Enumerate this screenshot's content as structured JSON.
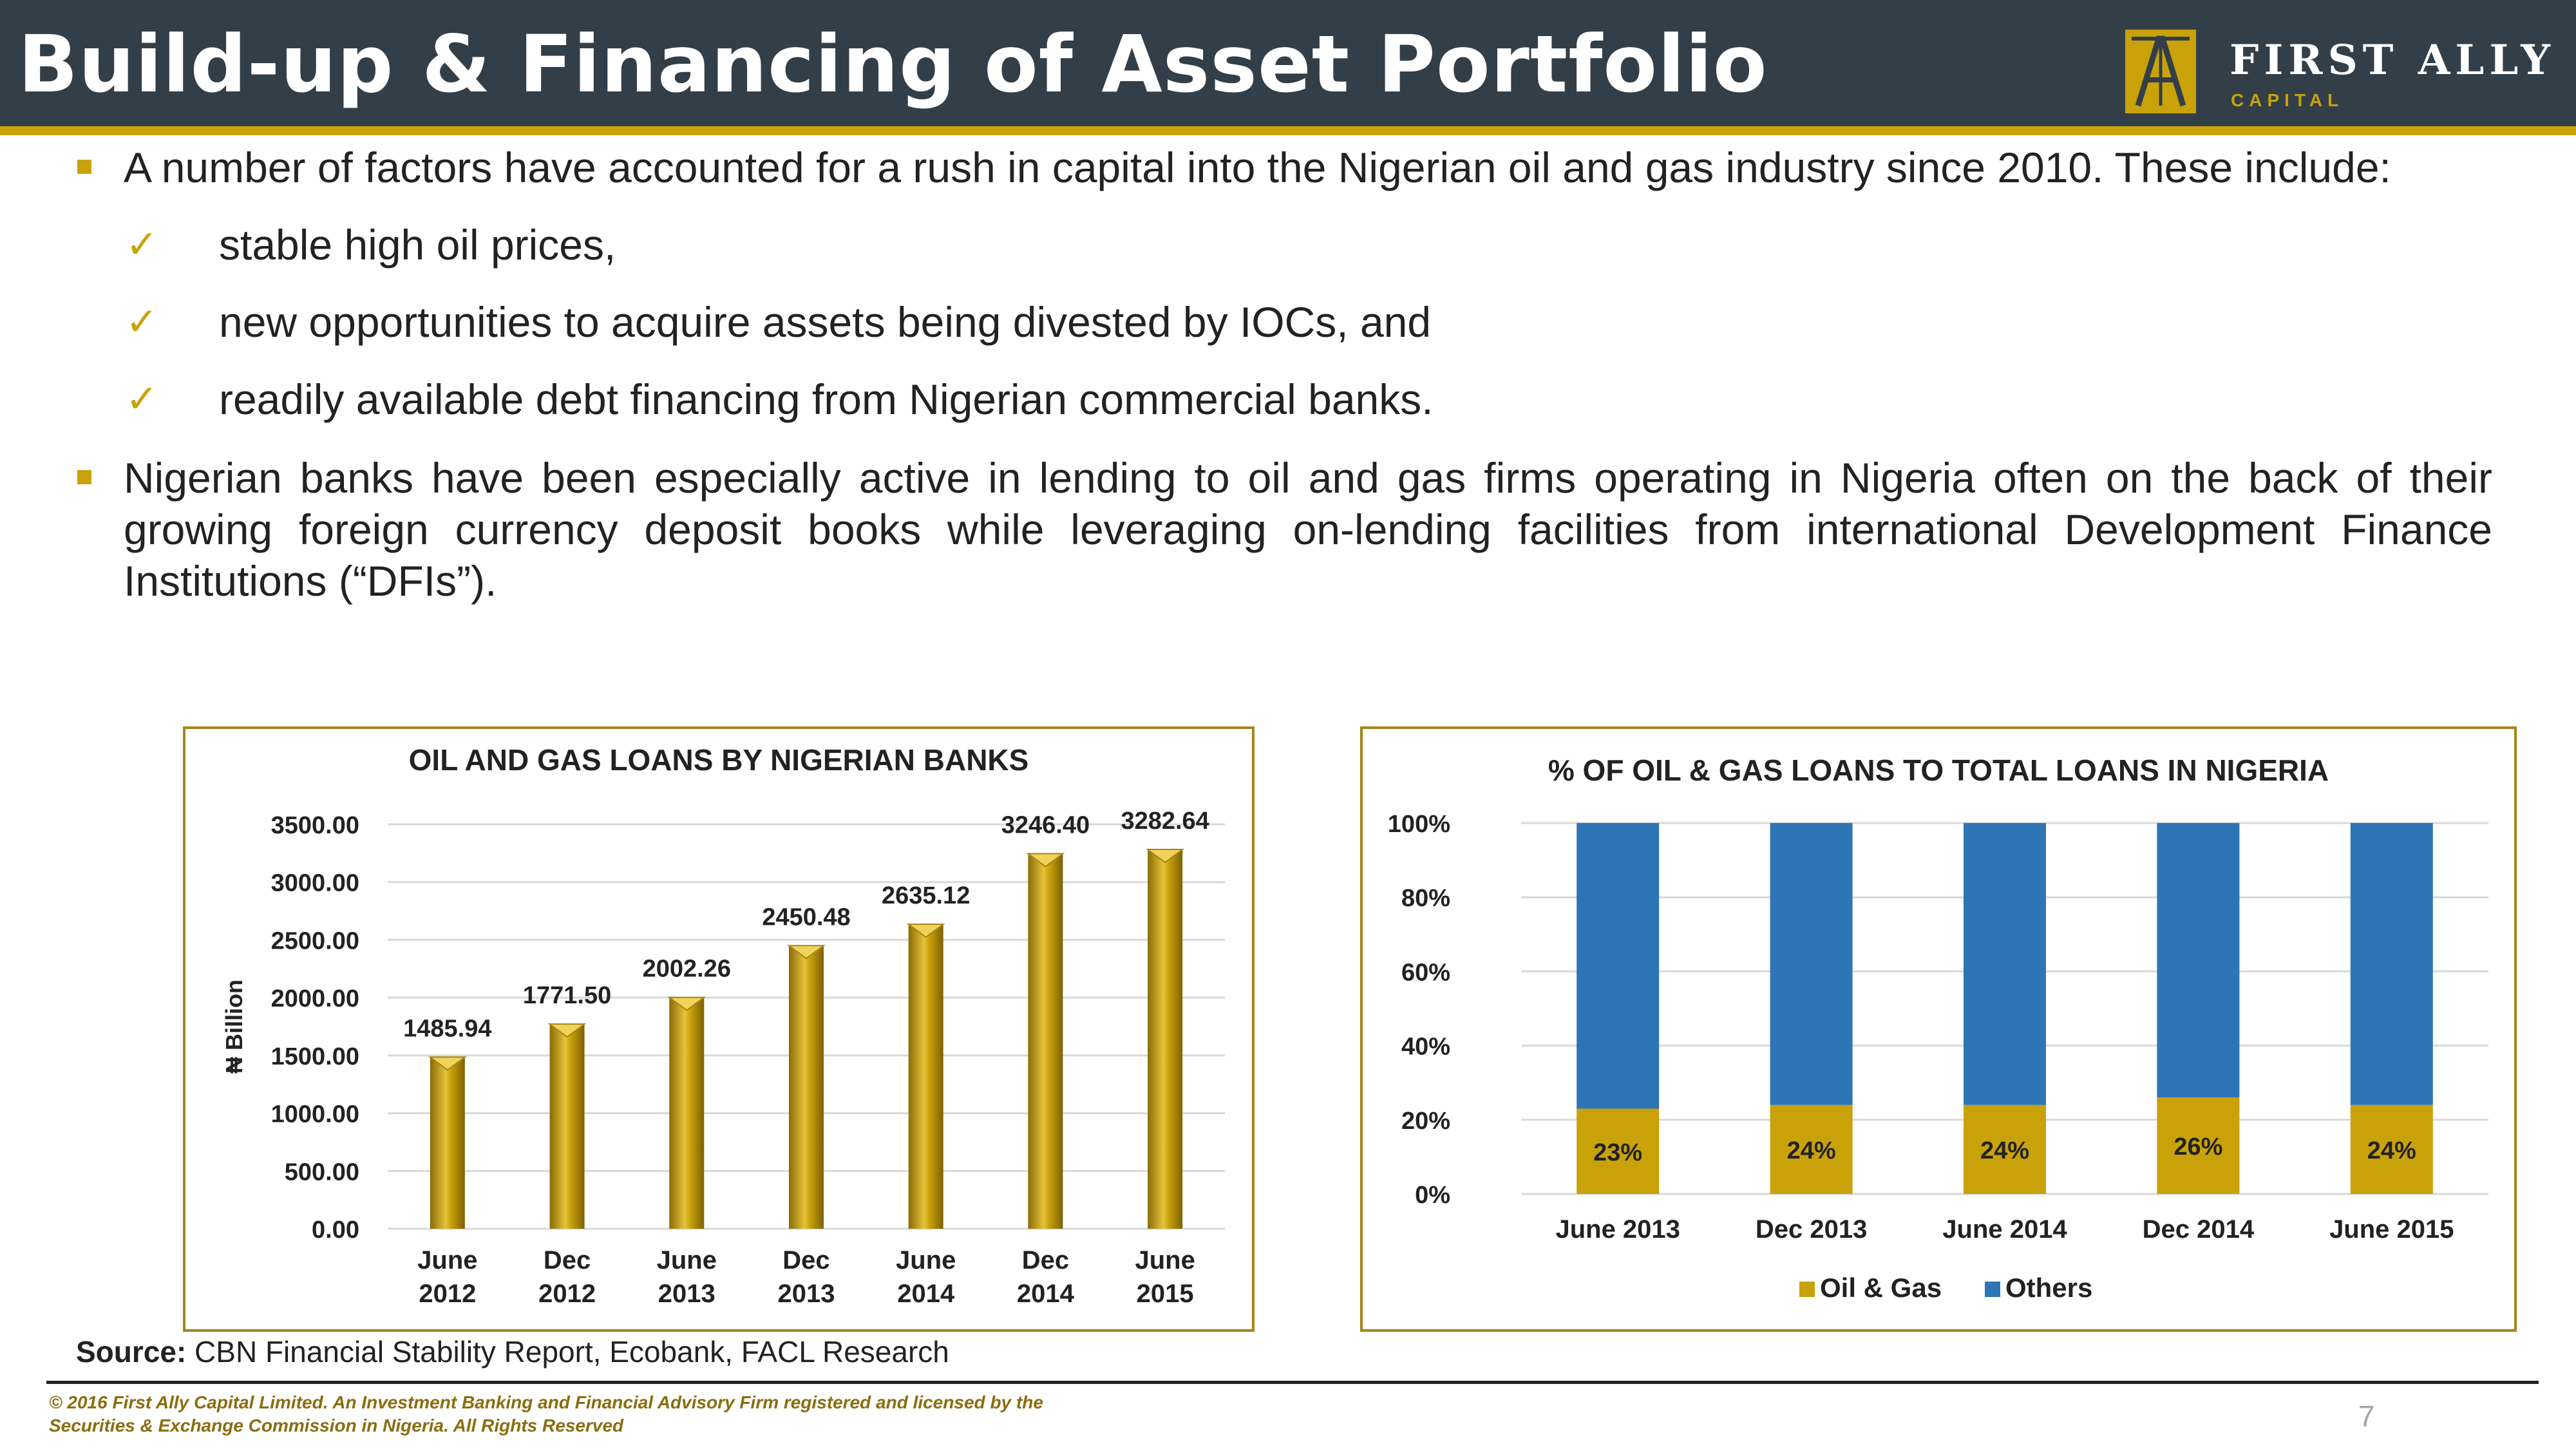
{
  "header": {
    "title": "Build-up & Financing of Asset Portfolio",
    "logo_name": "FIRST ALLY",
    "logo_sub": "CAPITAL",
    "logo_letter": "A"
  },
  "content": {
    "bullet1": "A number of factors have accounted for a rush in capital into the Nigerian oil and gas industry since 2010. These include:",
    "checks": [
      "stable high oil prices,",
      "new opportunities to acquire assets being divested by IOCs, and",
      "readily available debt financing from Nigerian commercial banks."
    ],
    "bullet2": "Nigerian banks have been especially active in lending to oil and gas firms operating in Nigeria often on the back of their growing foreign currency deposit books while leveraging on-lending facilities from international Development Finance Institutions (“DFIs”)."
  },
  "chart_data": [
    {
      "type": "bar",
      "title": "OIL AND GAS LOANS BY NIGERIAN BANKS",
      "ylabel": "₦ Billion",
      "xlabel": "",
      "categories": [
        [
          "June",
          "2012"
        ],
        [
          "Dec",
          "2012"
        ],
        [
          "June",
          "2013"
        ],
        [
          "Dec",
          "2013"
        ],
        [
          "June",
          "2014"
        ],
        [
          "Dec",
          "2014"
        ],
        [
          "June",
          "2015"
        ]
      ],
      "values": [
        1485.94,
        1771.5,
        2002.26,
        2450.48,
        2635.12,
        3246.4,
        3282.64
      ],
      "labels": [
        "1485.94",
        "1771.50",
        "2002.26",
        "2450.48",
        "2635.12",
        "3246.40",
        "3282.64"
      ],
      "ylim": [
        0,
        3500
      ],
      "yticks": [
        "0.00",
        "500.00",
        "1000.00",
        "1500.00",
        "2000.00",
        "2500.00",
        "3000.00",
        "3500.00"
      ],
      "grid": true,
      "color": "#c9a20a"
    },
    {
      "type": "bar",
      "stacked": true,
      "title": "% OF OIL & GAS LOANS TO TOTAL LOANS IN NIGERIA",
      "categories": [
        "June 2013",
        "Dec 2013",
        "June 2014",
        "Dec 2014",
        "June 2015"
      ],
      "series": [
        {
          "name": "Oil & Gas",
          "values": [
            23,
            24,
            24,
            26,
            24
          ],
          "labels": [
            "23%",
            "24%",
            "24%",
            "26%",
            "24%"
          ],
          "color": "#c9a20a"
        },
        {
          "name": "Others",
          "values": [
            77,
            76,
            76,
            74,
            76
          ],
          "color": "#2e75b6"
        }
      ],
      "ylim": [
        0,
        100
      ],
      "yticks": [
        "0%",
        "20%",
        "40%",
        "60%",
        "80%",
        "100%"
      ],
      "grid": true,
      "legend": "bottom"
    }
  ],
  "source": {
    "label": "Source:",
    "text": " CBN Financial Stability Report, Ecobank, FACL Research"
  },
  "footer": {
    "copyright": "© 2016 First Ally Capital Limited. An Investment Banking and Financial Advisory Firm registered and licensed by the Securities & Exchange Commission in Nigeria. All Rights Reserved",
    "page": "7"
  }
}
